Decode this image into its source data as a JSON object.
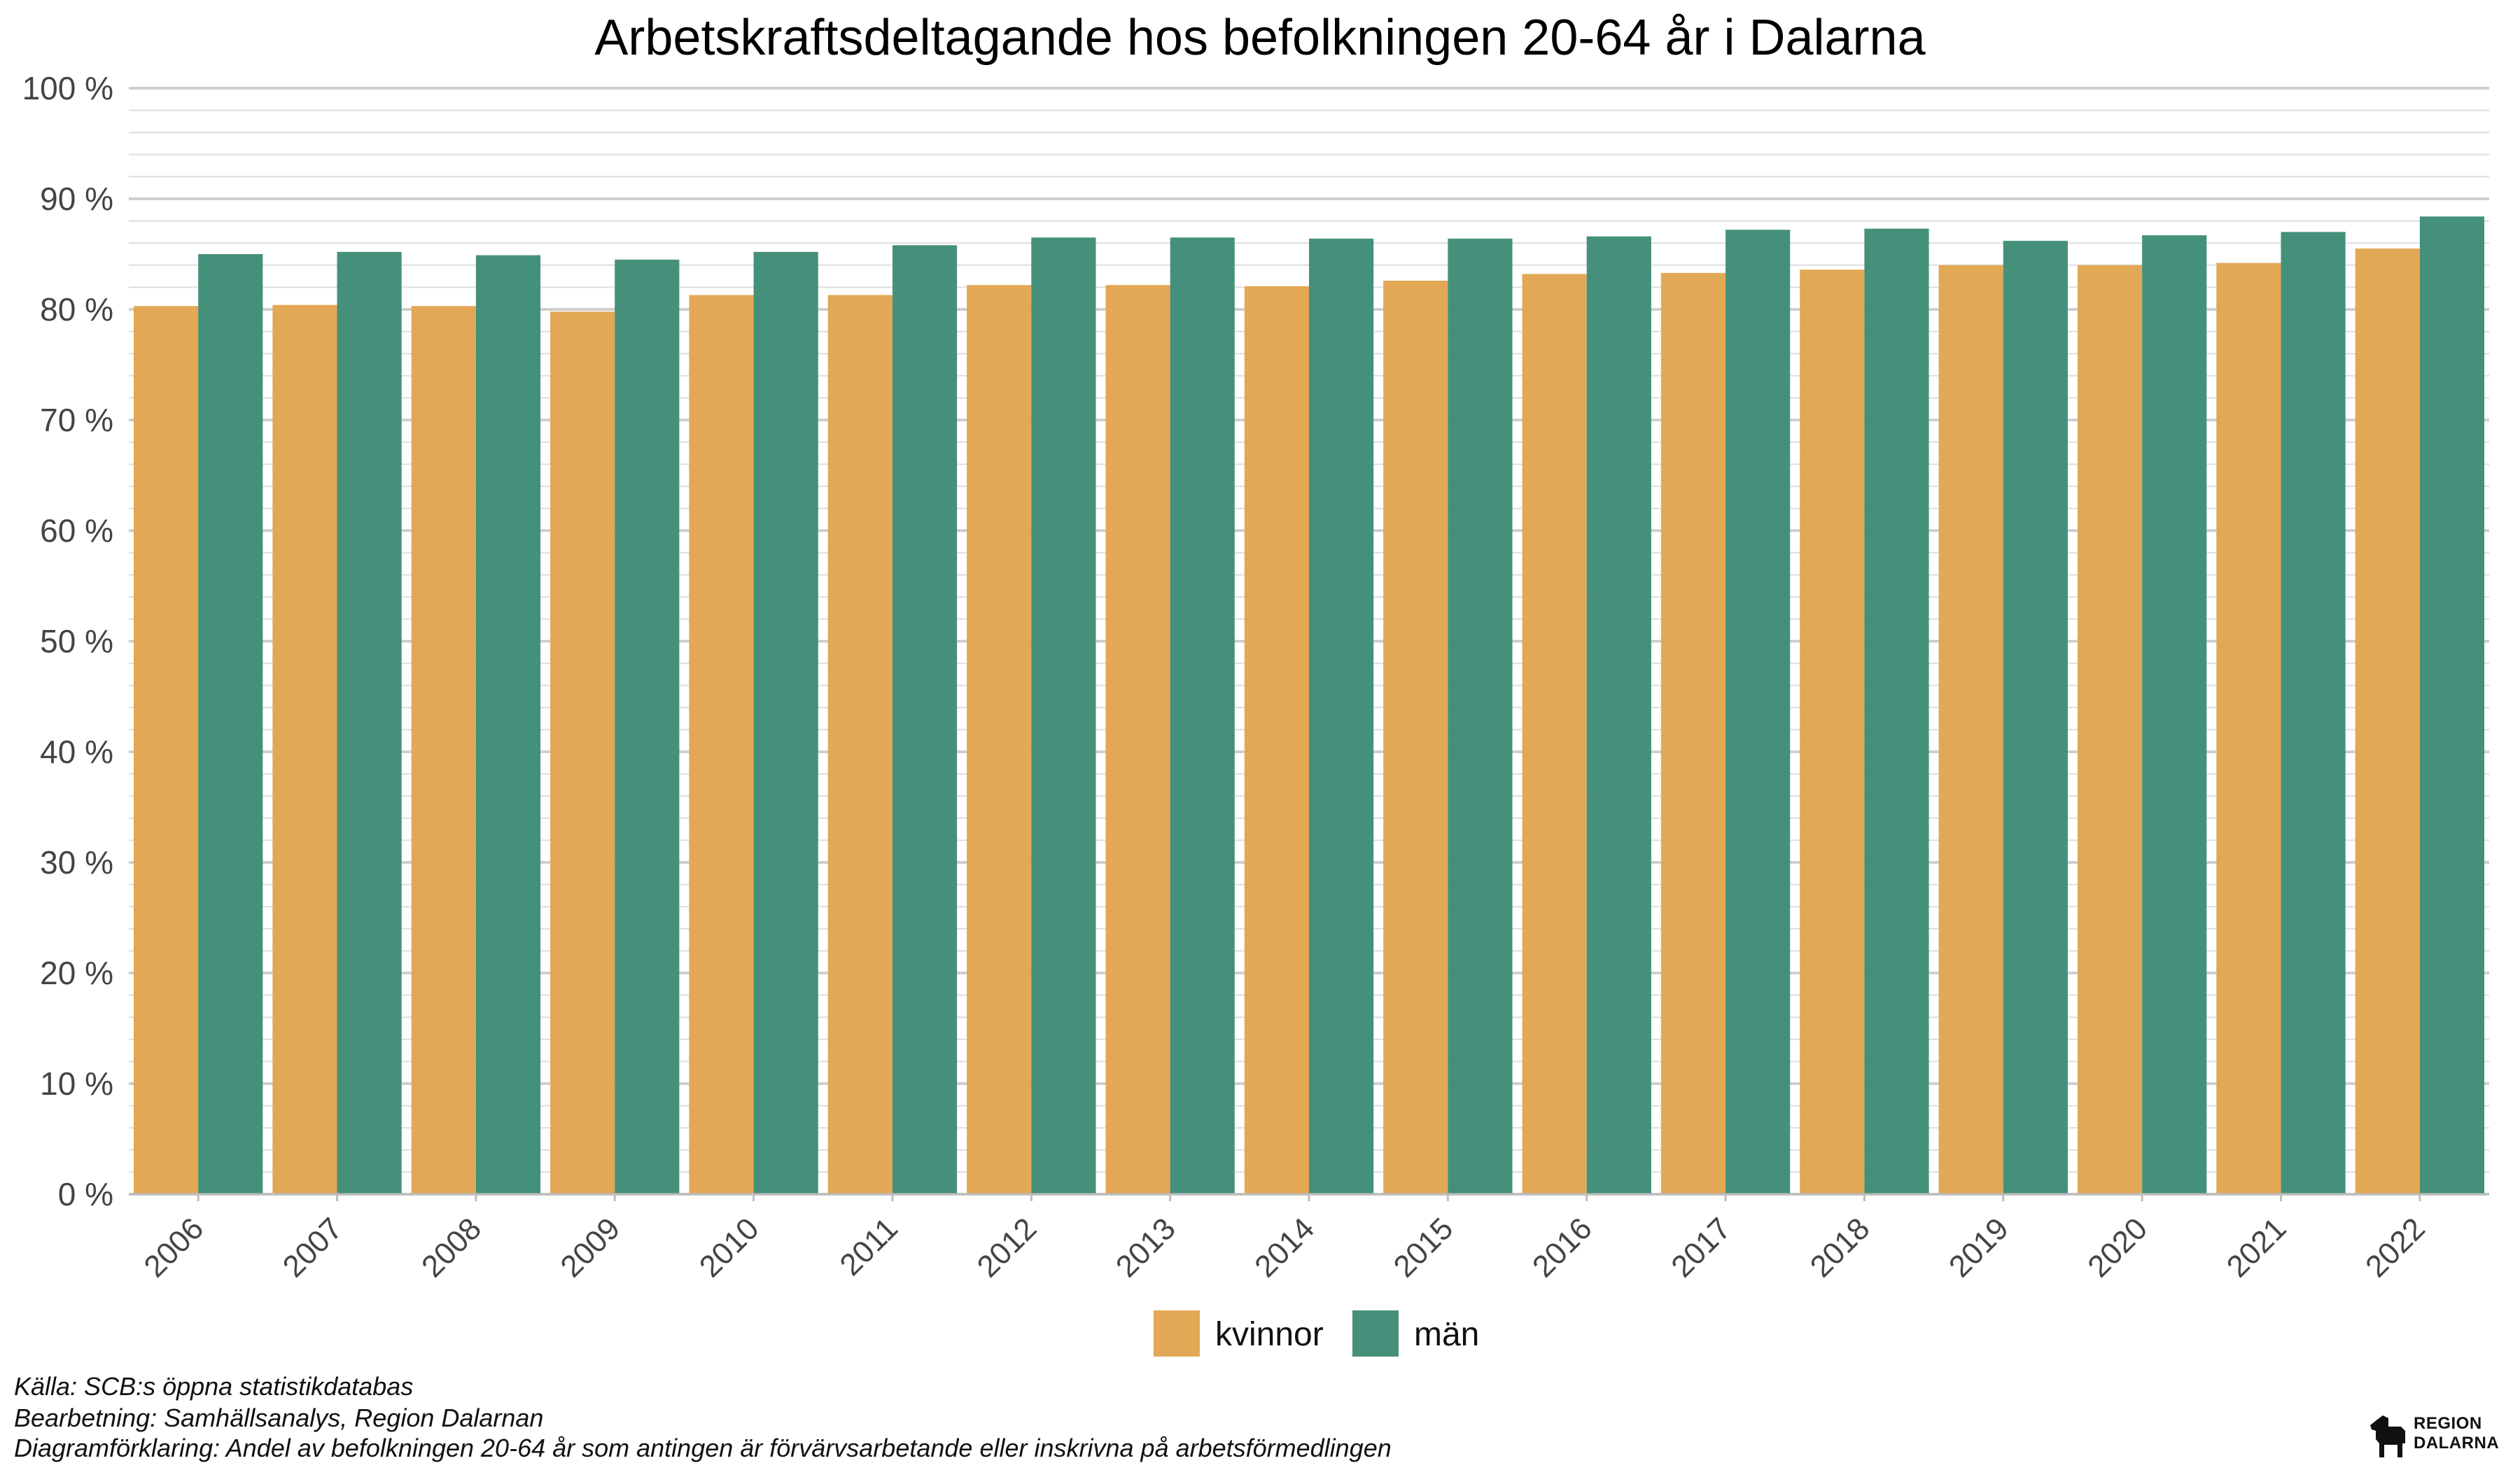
{
  "chart_data": {
    "type": "bar",
    "title": "Arbetskraftsdeltagande hos befolkningen 20-64 år i Dalarna",
    "xlabel": "",
    "ylabel": "",
    "categories": [
      "2006",
      "2007",
      "2008",
      "2009",
      "2010",
      "2011",
      "2012",
      "2013",
      "2014",
      "2015",
      "2016",
      "2017",
      "2018",
      "2019",
      "2020",
      "2021",
      "2022"
    ],
    "series": [
      {
        "name": "kvinnor",
        "color": "#E2A855",
        "values": [
          80.3,
          80.4,
          80.3,
          79.8,
          81.3,
          81.3,
          82.2,
          82.2,
          82.1,
          82.6,
          83.2,
          83.3,
          83.6,
          84.0,
          84.0,
          84.2,
          85.5
        ]
      },
      {
        "name": "män",
        "color": "#45907A",
        "values": [
          85.0,
          85.2,
          84.9,
          84.5,
          85.2,
          85.8,
          86.5,
          86.5,
          86.4,
          86.4,
          86.6,
          87.2,
          87.3,
          86.2,
          86.7,
          87.0,
          88.4
        ]
      }
    ],
    "ylim": [
      0,
      100
    ],
    "yticks": [
      0,
      10,
      20,
      30,
      40,
      50,
      60,
      70,
      80,
      90,
      100
    ],
    "ytick_labels": [
      "0 %",
      "10 %",
      "20 %",
      "30 %",
      "40 %",
      "50 %",
      "60 %",
      "70 %",
      "80 %",
      "90 %",
      "100 %"
    ],
    "grid": true,
    "legend_position": "bottom",
    "x_tick_rotation": "45 degrees"
  },
  "footer": {
    "source": "Källa: SCB:s öppna statistikdatabas",
    "processing": "Bearbetning: Samhällsanalys, Region Dalarnan",
    "explanation": "Diagramförklaring: Andel av befolkningen 20-64 år som antingen är förvärvsarbetande eller inskrivna på arbetsförmedlingen"
  },
  "logo": {
    "line1": "REGION",
    "line2": "DALARNA",
    "icon": "dala-horse-icon"
  }
}
